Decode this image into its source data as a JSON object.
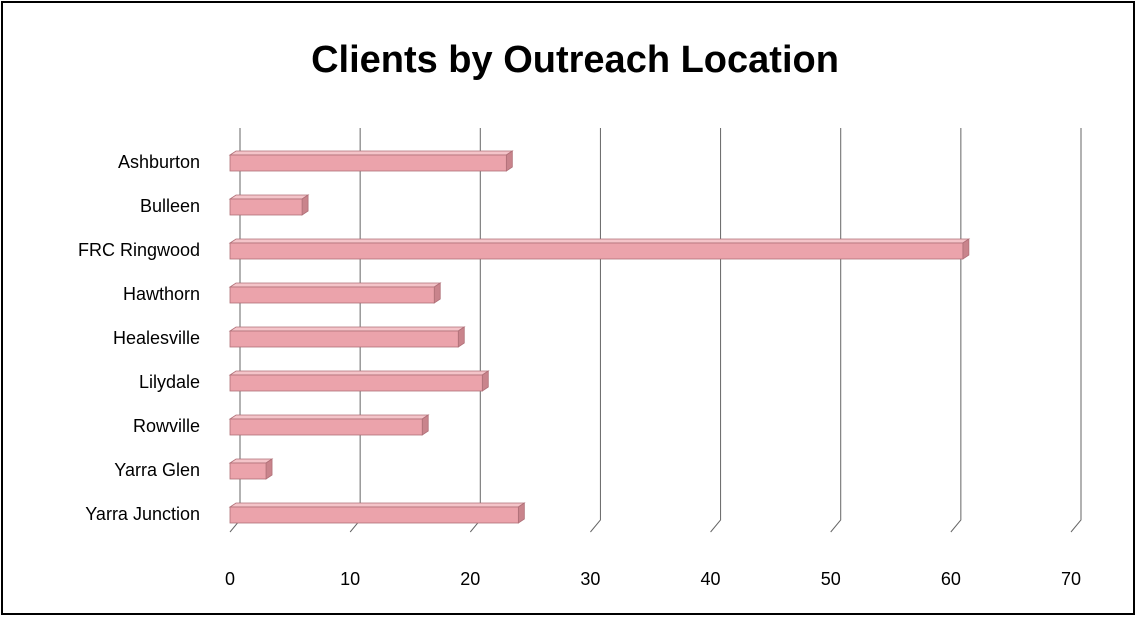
{
  "chart_data": {
    "type": "bar",
    "orientation": "horizontal",
    "title": "Clients by Outreach Location",
    "categories": [
      "Ashburton",
      "Bulleen",
      "FRC Ringwood",
      "Hawthorn",
      "Healesville",
      "Lilydale",
      "Rowville",
      "Yarra Glen",
      "Yarra Junction"
    ],
    "values": [
      23,
      6,
      61,
      17,
      19,
      21,
      16,
      3,
      24
    ],
    "color": "#eba3ab",
    "xlim": [
      0,
      70
    ],
    "xticks": [
      0,
      10,
      20,
      30,
      40,
      50,
      60,
      70
    ],
    "grid": true
  }
}
